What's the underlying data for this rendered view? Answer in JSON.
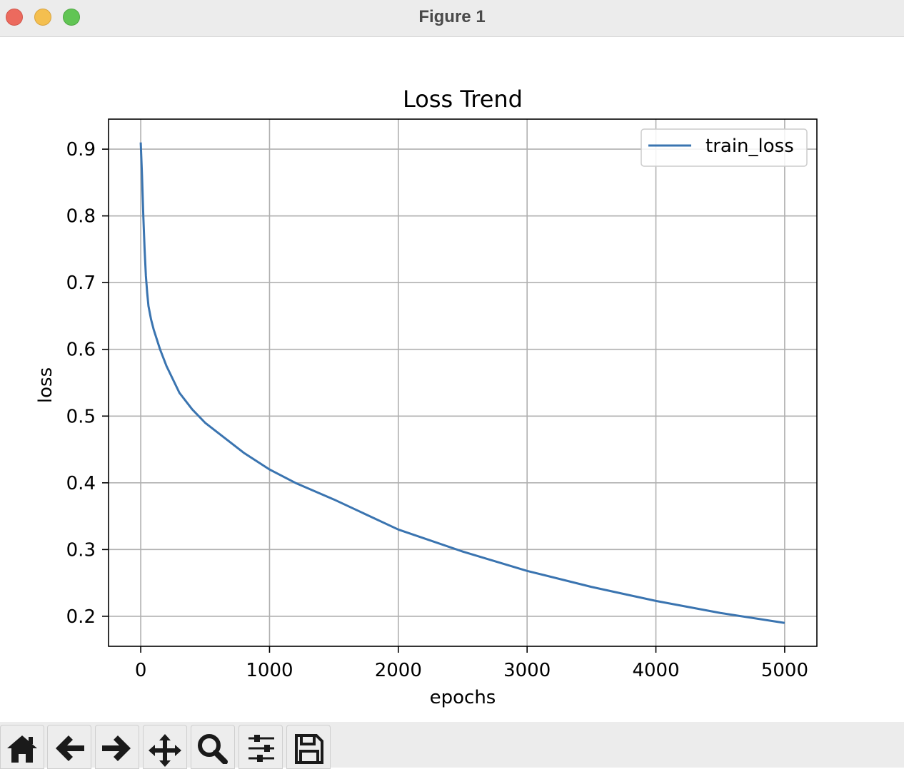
{
  "window": {
    "title": "Figure 1"
  },
  "toolbar": {
    "items": [
      {
        "name": "home-icon"
      },
      {
        "name": "back-arrow-icon"
      },
      {
        "name": "forward-arrow-icon"
      },
      {
        "name": "pan-icon"
      },
      {
        "name": "zoom-magnifier-icon"
      },
      {
        "name": "configure-subplots-icon"
      },
      {
        "name": "save-icon"
      }
    ]
  },
  "chart_data": {
    "type": "line",
    "title": "Loss Trend",
    "xlabel": "epochs",
    "ylabel": "loss",
    "xlim": [
      -250,
      5250
    ],
    "ylim": [
      0.155,
      0.945
    ],
    "xticks": [
      0,
      1000,
      2000,
      3000,
      4000,
      5000
    ],
    "yticks": [
      0.2,
      0.3,
      0.4,
      0.5,
      0.6,
      0.7,
      0.8,
      0.9
    ],
    "grid": true,
    "legend": "top-right",
    "line_color": "#3a74b0",
    "series": [
      {
        "name": "train_loss",
        "x": [
          0,
          10,
          20,
          30,
          40,
          50,
          60,
          80,
          100,
          150,
          200,
          300,
          400,
          500,
          600,
          800,
          1000,
          1200,
          1500,
          2000,
          2500,
          3000,
          3500,
          4000,
          4500,
          5000
        ],
        "y": [
          0.91,
          0.86,
          0.8,
          0.75,
          0.71,
          0.685,
          0.665,
          0.645,
          0.63,
          0.6,
          0.575,
          0.535,
          0.51,
          0.49,
          0.475,
          0.445,
          0.42,
          0.4,
          0.375,
          0.33,
          0.297,
          0.268,
          0.244,
          0.223,
          0.205,
          0.19
        ]
      }
    ]
  }
}
